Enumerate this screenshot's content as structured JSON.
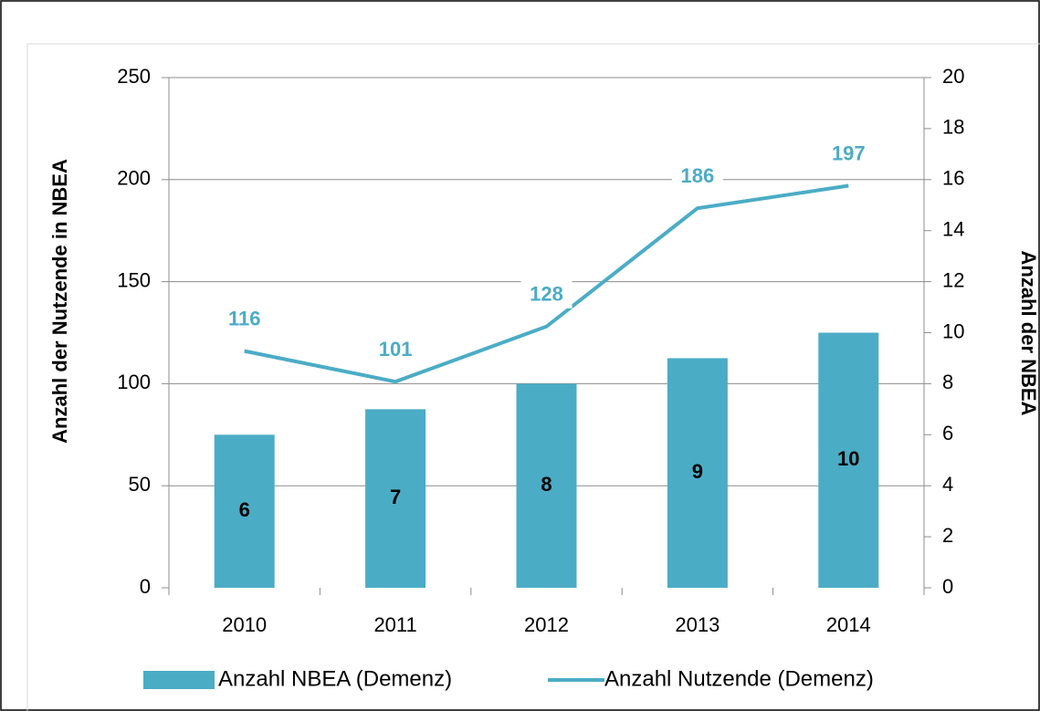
{
  "chart_data": {
    "type": "bar_line",
    "ylabel": "Anzahl der Nutzende in NBEA",
    "y2label": "Anzahl der NBEA",
    "categories": [
      "2010",
      "2011",
      "2012",
      "2013",
      "2014"
    ],
    "series": [
      {
        "name": "Anzahl NBEA (Demenz)",
        "type": "bar",
        "color": "#4bacc6",
        "axis": "y2",
        "values": [
          6,
          7,
          8,
          9,
          10
        ]
      },
      {
        "name": "Anzahl Nutzende (Demenz)",
        "type": "line",
        "color": "#4bacc6",
        "axis": "y",
        "values": [
          116,
          101,
          128,
          186,
          197
        ]
      }
    ],
    "ylim": [
      0,
      250
    ],
    "yticks": [
      0,
      50,
      100,
      150,
      200,
      250
    ],
    "y2lim": [
      0,
      20
    ],
    "y2ticks": [
      0,
      2,
      4,
      6,
      8,
      10,
      12,
      14,
      16,
      18,
      20
    ],
    "grid": true,
    "legend": "bottom"
  }
}
